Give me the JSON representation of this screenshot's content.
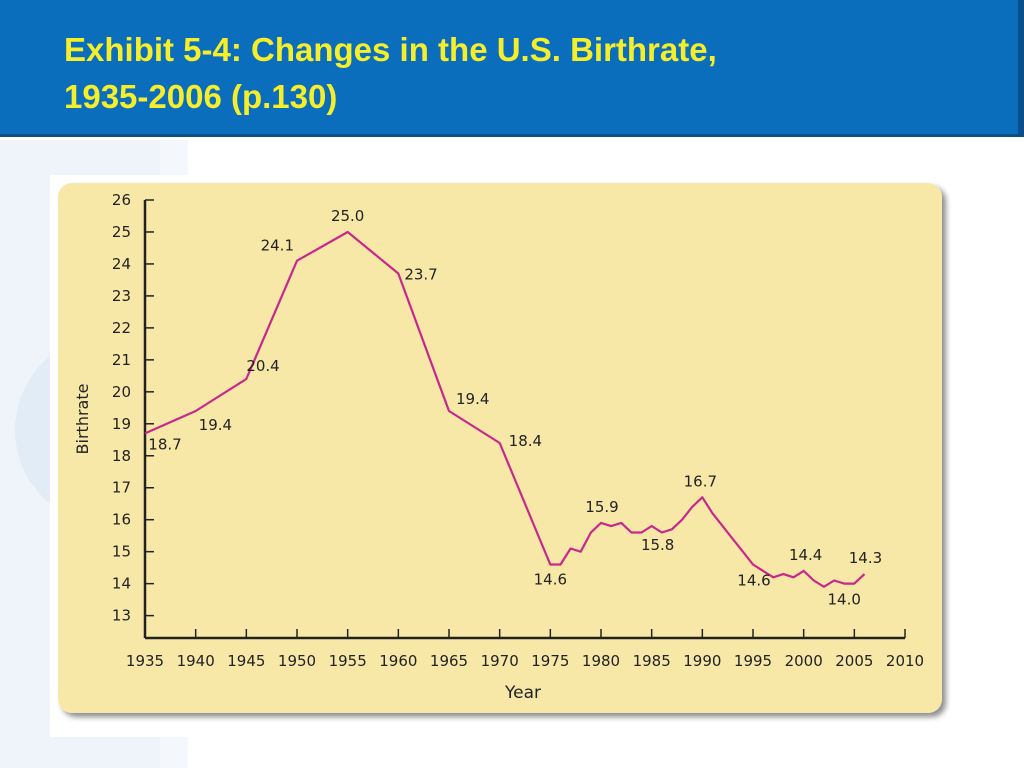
{
  "slide": {
    "title_line1": "Exhibit 5-4: Changes in the U.S. Birthrate,",
    "title_line2": "1935-2006 (p.130)"
  },
  "colors": {
    "header_bg": "#0a6ebd",
    "title_text": "#f6ee2a",
    "chart_panel": "#f8e8a8",
    "line": "#c8288c"
  },
  "chart_data": {
    "type": "line",
    "title": "",
    "xlabel": "Year",
    "ylabel": "Birthrate",
    "xlim": [
      1935,
      2010
    ],
    "ylim": [
      12.3,
      26
    ],
    "x_ticks": [
      1935,
      1940,
      1945,
      1950,
      1955,
      1960,
      1965,
      1970,
      1975,
      1980,
      1985,
      1990,
      1995,
      2000,
      2005,
      2010
    ],
    "y_ticks": [
      13,
      14,
      15,
      16,
      17,
      18,
      19,
      20,
      21,
      22,
      23,
      24,
      25,
      26
    ],
    "grid": false,
    "series": [
      {
        "x": [
          1935,
          1940,
          1945,
          1950,
          1955,
          1960,
          1965,
          1970,
          1975,
          1976,
          1977,
          1978,
          1979,
          1980,
          1981,
          1982,
          1983,
          1984,
          1985,
          1986,
          1987,
          1988,
          1989,
          1990,
          1991,
          1992,
          1993,
          1994,
          1995,
          1996,
          1997,
          1998,
          1999,
          2000,
          2001,
          2002,
          2003,
          2004,
          2005,
          2006
        ],
        "y": [
          18.7,
          19.4,
          20.4,
          24.1,
          25.0,
          23.7,
          19.4,
          18.4,
          14.6,
          14.6,
          15.1,
          15.0,
          15.6,
          15.9,
          15.8,
          15.9,
          15.6,
          15.6,
          15.8,
          15.6,
          15.7,
          16.0,
          16.4,
          16.7,
          16.2,
          15.8,
          15.4,
          15.0,
          14.6,
          14.4,
          14.2,
          14.3,
          14.2,
          14.4,
          14.1,
          13.9,
          14.1,
          14.0,
          14.0,
          14.3
        ]
      }
    ],
    "data_labels": [
      {
        "x": 1935,
        "y": 18.7,
        "text": "18.7"
      },
      {
        "x": 1940,
        "y": 19.4,
        "text": "19.4"
      },
      {
        "x": 1945,
        "y": 20.4,
        "text": "20.4"
      },
      {
        "x": 1950,
        "y": 24.1,
        "text": "24.1"
      },
      {
        "x": 1955,
        "y": 25.0,
        "text": "25.0"
      },
      {
        "x": 1960,
        "y": 23.7,
        "text": "23.7"
      },
      {
        "x": 1965,
        "y": 19.4,
        "text": "19.4"
      },
      {
        "x": 1970,
        "y": 18.4,
        "text": "18.4"
      },
      {
        "x": 1975,
        "y": 14.6,
        "text": "14.6"
      },
      {
        "x": 1980,
        "y": 15.9,
        "text": "15.9"
      },
      {
        "x": 1985,
        "y": 15.8,
        "text": "15.8"
      },
      {
        "x": 1990,
        "y": 16.7,
        "text": "16.7"
      },
      {
        "x": 1995,
        "y": 14.6,
        "text": "14.6"
      },
      {
        "x": 2000,
        "y": 14.4,
        "text": "14.4"
      },
      {
        "x": 2004,
        "y": 14.0,
        "text": "14.0"
      },
      {
        "x": 2006,
        "y": 14.3,
        "text": "14.3"
      }
    ]
  }
}
